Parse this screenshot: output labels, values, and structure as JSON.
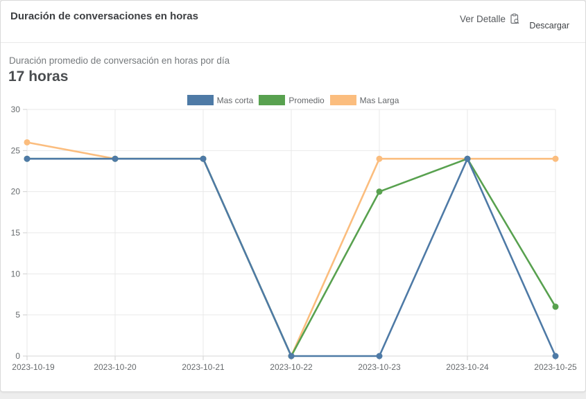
{
  "header": {
    "title": "Duración de conversaciones en horas",
    "ver_detalle_label": "Ver Detalle",
    "descargar_label": "Descargar"
  },
  "summary": {
    "subtitle": "Duración promedio de conversación en horas por día",
    "value": "17 horas"
  },
  "colors": {
    "mas_corta": "#4e7aa6",
    "promedio": "#58a14f",
    "mas_larga": "#fbbd7e",
    "grid": "#e9e9e9",
    "axis_line": "#d7d7d7",
    "tick": "#cfcfcf",
    "axis_text": "#666a6d"
  },
  "chart_data": {
    "type": "line",
    "x": [
      "2023-10-19",
      "2023-10-20",
      "2023-10-21",
      "2023-10-22",
      "2023-10-23",
      "2023-10-24",
      "2023-10-25"
    ],
    "series": [
      {
        "name": "Mas corta",
        "color": "#4e7aa6",
        "values": [
          24,
          24,
          24,
          0,
          0,
          24,
          0
        ]
      },
      {
        "name": "Promedio",
        "color": "#58a14f",
        "values": [
          24,
          24,
          24,
          0,
          20,
          24,
          6
        ]
      },
      {
        "name": "Mas Larga",
        "color": "#fbbd7e",
        "values": [
          26,
          24,
          24,
          0,
          24,
          24,
          24
        ]
      }
    ],
    "title": "Duración promedio de conversación en horas por día",
    "xlabel": "",
    "ylabel": "",
    "ylim": [
      0,
      30
    ],
    "yticks": [
      0,
      5,
      10,
      15,
      20,
      25,
      30
    ],
    "grid": true,
    "legend_position": "top-center",
    "draw_order_note": "series drawn in reverse order, Mas corta on top"
  }
}
